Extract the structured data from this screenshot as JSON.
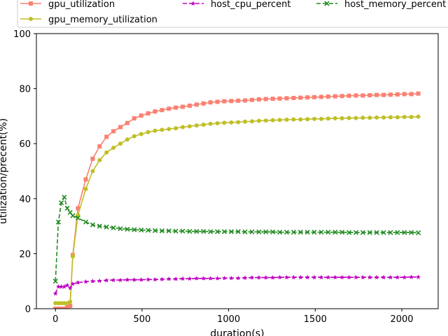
{
  "chart_data": {
    "type": "line",
    "title": "",
    "xlabel": "duration(s)",
    "ylabel": "utilization/precent(%)",
    "xlim": [
      -110,
      2210
    ],
    "ylim": [
      0,
      100
    ],
    "xticks": [
      0,
      500,
      1000,
      1500,
      2000
    ],
    "yticks": [
      0,
      20,
      40,
      60,
      80,
      100
    ],
    "grid": false,
    "legend_position": "top",
    "x": [
      0,
      17,
      34,
      51,
      68,
      85,
      100,
      130,
      175,
      215,
      255,
      295,
      335,
      375,
      415,
      455,
      495,
      535,
      575,
      615,
      655,
      695,
      735,
      775,
      815,
      855,
      895,
      935,
      975,
      1015,
      1055,
      1095,
      1135,
      1175,
      1215,
      1255,
      1295,
      1335,
      1375,
      1415,
      1455,
      1495,
      1535,
      1575,
      1615,
      1655,
      1695,
      1735,
      1775,
      1815,
      1855,
      1895,
      1935,
      1975,
      2015,
      2055,
      2095
    ],
    "series": [
      {
        "name": "gpu_utilization",
        "color": "#fa8072",
        "marker": "square",
        "dashed": false,
        "values": [
          0,
          0,
          0,
          0,
          0.5,
          1,
          19.5,
          36.5,
          47,
          54.5,
          59,
          62.5,
          64.5,
          66,
          67.5,
          69.2,
          70.2,
          71,
          71.7,
          72.2,
          72.7,
          73.1,
          73.4,
          73.8,
          74.2,
          74.6,
          75,
          75.2,
          75.4,
          75.5,
          75.6,
          75.7,
          75.9,
          76.1,
          76.2,
          76.3,
          76.4,
          76.5,
          76.6,
          76.7,
          76.8,
          76.9,
          77,
          77.1,
          77.2,
          77.3,
          77.4,
          77.5,
          77.5,
          77.6,
          77.7,
          77.7,
          77.8,
          77.9,
          78,
          78,
          78.2
        ]
      },
      {
        "name": "gpu_memory_utilization",
        "color": "#bfbf26",
        "marker": "circle",
        "dashed": false,
        "values": [
          2,
          2,
          2,
          2,
          2,
          2.5,
          19,
          34,
          43.5,
          50,
          54,
          56.8,
          58.5,
          60,
          61.5,
          62.7,
          63.5,
          64.2,
          64.7,
          65,
          65.3,
          65.6,
          66,
          66.3,
          66.6,
          66.9,
          67.2,
          67.4,
          67.6,
          67.7,
          67.8,
          68,
          68.1,
          68.3,
          68.4,
          68.5,
          68.6,
          68.7,
          68.8,
          68.8,
          68.9,
          69,
          69,
          69.1,
          69.2,
          69.2,
          69.3,
          69.3,
          69.4,
          69.4,
          69.5,
          69.5,
          69.6,
          69.6,
          69.7,
          69.7,
          69.8
        ]
      },
      {
        "name": "host_cpu_percent",
        "color": "#bf00bf",
        "marker": "star",
        "dashed": true,
        "values": [
          5.5,
          8,
          8,
          8,
          8.5,
          7.5,
          9,
          9.5,
          9.8,
          10,
          10.1,
          10.3,
          10.4,
          10.4,
          10.5,
          10.5,
          10.5,
          10.6,
          10.6,
          10.7,
          10.8,
          10.8,
          10.9,
          10.9,
          11,
          11,
          11,
          11,
          11.1,
          11.1,
          11.1,
          11.2,
          11.3,
          11.3,
          11.3,
          11.3,
          11.4,
          11.4,
          11.4,
          11.4,
          11.4,
          11.4,
          11.4,
          11.4,
          11.4,
          11.4,
          11.4,
          11.4,
          11.4,
          11.4,
          11.4,
          11.4,
          11.4,
          11.4,
          11.4,
          11.5,
          11.5
        ]
      },
      {
        "name": "host_memory_percent",
        "color": "#228b22",
        "marker": "x",
        "dashed": true,
        "values": [
          10,
          31.5,
          38.5,
          40.5,
          36.5,
          35,
          33.8,
          33,
          31.5,
          30.5,
          30,
          29.7,
          29.4,
          29.1,
          28.9,
          28.7,
          28.6,
          28.5,
          28.4,
          28.3,
          28.3,
          28.2,
          28.2,
          28.1,
          28.1,
          28.1,
          28,
          28,
          28,
          28,
          28,
          27.9,
          27.9,
          27.9,
          27.9,
          27.9,
          27.8,
          27.8,
          27.8,
          27.8,
          27.8,
          27.8,
          27.8,
          27.8,
          27.8,
          27.8,
          27.7,
          27.7,
          27.7,
          27.7,
          27.7,
          27.7,
          27.7,
          27.7,
          27.7,
          27.7,
          27.6
        ]
      }
    ]
  }
}
